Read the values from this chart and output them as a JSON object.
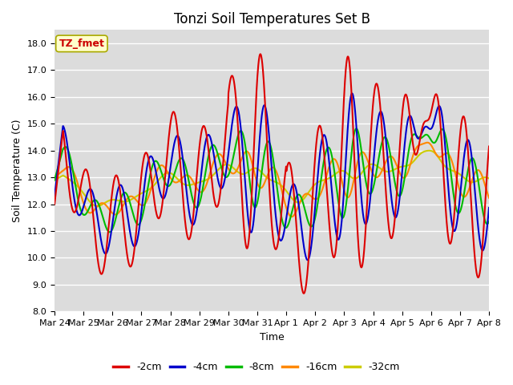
{
  "title": "Tonzi Soil Temperatures Set B",
  "xlabel": "Time",
  "ylabel": "Soil Temperature (C)",
  "ylim": [
    8.0,
    18.5
  ],
  "yticks": [
    8.0,
    9.0,
    10.0,
    11.0,
    12.0,
    13.0,
    14.0,
    15.0,
    16.0,
    17.0,
    18.0
  ],
  "bg_color": "#dcdcdc",
  "fig_color": "#ffffff",
  "legend_label": "TZ_fmet",
  "legend_box_color": "#ffffcc",
  "legend_text_color": "#cc0000",
  "legend_box_edge": "#aaaa00",
  "series_colors": {
    "-2cm": "#dd0000",
    "-4cm": "#0000cc",
    "-8cm": "#00bb00",
    "-16cm": "#ff8800",
    "-32cm": "#cccc00"
  },
  "series_labels": [
    "-2cm",
    "-4cm",
    "-8cm",
    "-16cm",
    "-32cm"
  ],
  "xtick_labels": [
    "Mar 24",
    "Mar 25",
    "Mar 26",
    "Mar 27",
    "Mar 28",
    "Mar 29",
    "Mar 30",
    "Mar 31",
    "Apr 1",
    "Apr 2",
    "Apr 3",
    "Apr 4",
    "Apr 5",
    "Apr 6",
    "Apr 7",
    "Apr 8"
  ],
  "title_fontsize": 12,
  "axis_label_fontsize": 9,
  "tick_fontsize": 8,
  "linewidth": 1.5
}
